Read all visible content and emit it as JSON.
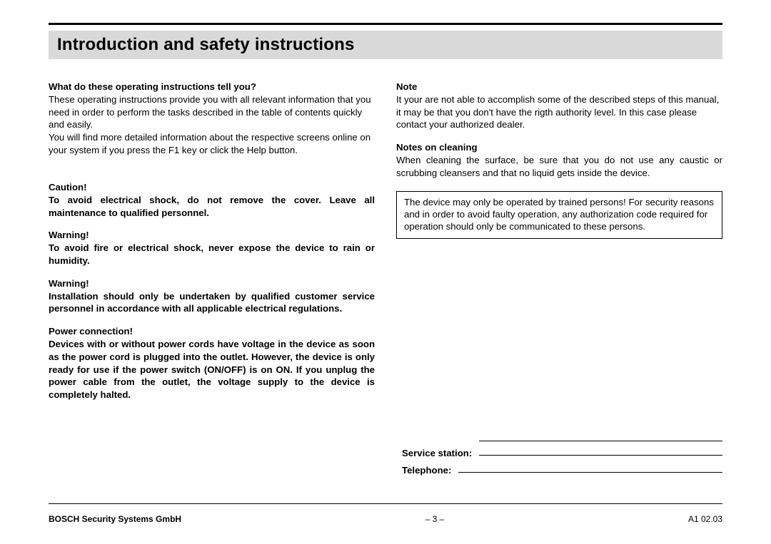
{
  "title": "Introduction and safety instructions",
  "left": {
    "h1": "What do these operating instructions tell you?",
    "p1": "These operating instructions provide you with all relevant information that you need in order to perform the tasks described in the table of contents quickly and easily.",
    "p2": "You will find more detailed information about the respective screens online on your system if you press the F1 key or click the Help button.",
    "caution_h": "Caution!",
    "caution_p": "To avoid electrical shock, do not remove the cover. Leave all maintenance to qualified personnel.",
    "warn1_h": "Warning!",
    "warn1_p": "To avoid fire or electrical shock, never expose the device to rain or humidity.",
    "warn2_h": "Warning!",
    "warn2_p": "Installation should only be undertaken by qualified customer service personnel in accordance with all applicable electrical regulations.",
    "power_h": "Power connection!",
    "power_p": "Devices with or without power cords have voltage in the device as soon as the power cord is plugged into the outlet. However, the device is only ready for use if the power switch (ON/OFF) is on ON. If you unplug the power cable from the outlet, the voltage supply to the device is completely halted."
  },
  "right": {
    "note_h": "Note",
    "note_p": "It your are not able to accomplish some of the described steps of this manual, it may be that you don't have the rigth authority level. In this case please contact your authorized dealer.",
    "clean_h": "Notes on cleaning",
    "clean_p": "When cleaning the surface, be sure that you do not use any caustic or scrubbing cleansers and that no liquid gets inside the device.",
    "box": "The device may only be operated by trained\npersons! For security reasons and in order to avoid faulty operation, any authorization code required for operation should only be communicated to these persons."
  },
  "form": {
    "service_label": "Service station:",
    "phone_label": "Telephone:"
  },
  "footer": {
    "left": "BOSCH Security Systems GmbH",
    "center": "– 3 –",
    "right": "A1 02.03"
  },
  "colors": {
    "title_bg": "#d9d9d9",
    "text": "#000000",
    "bg": "#ffffff"
  },
  "typography": {
    "title_fontsize": 24,
    "body_fontsize": 13,
    "footer_fontsize": 12,
    "font_family": "Arial, Helvetica, sans-serif"
  }
}
